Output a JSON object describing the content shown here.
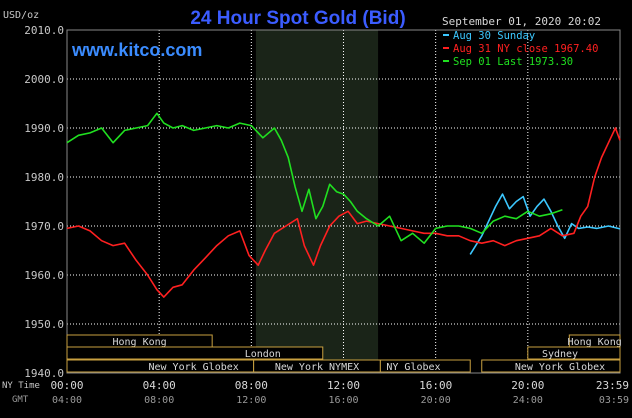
{
  "header": {
    "title": "24 Hour Spot Gold (Bid)",
    "unit": "USD/oz",
    "site": "www.kitco.com",
    "datetime": "September 01, 2020 20:02"
  },
  "colors": {
    "background": "#000000",
    "plot_bg": "#000000",
    "grid": "#ffffff",
    "title": "#3b5cff",
    "site": "#3b8cff",
    "text": "#c8c8c8",
    "session_shade": "#1a2418",
    "session_border": "#c8a040",
    "aug30": "#3cc8ff",
    "aug31": "#ff2020",
    "sep01": "#20e020"
  },
  "legend": [
    {
      "key": "aug30",
      "label": "Aug 30 Sunday"
    },
    {
      "key": "aug31",
      "label": "Aug 31 NY close 1967.40"
    },
    {
      "key": "sep01",
      "label": "Sep 01 Last 1973.30"
    }
  ],
  "sessions": [
    {
      "name": "Hong Kong",
      "row": 0
    },
    {
      "name": "Hong Kong",
      "row": 0
    },
    {
      "name": "London",
      "row": 1
    },
    {
      "name": "Sydney",
      "row": 1
    },
    {
      "name": "New York Globex",
      "row": 2
    },
    {
      "name": "New York NYMEX",
      "row": 2
    },
    {
      "name": "NY Globex",
      "row": 2
    },
    {
      "name": "New York Globex",
      "row": 2
    }
  ],
  "axis_labels": {
    "ny_time": "NY Time",
    "gmt": "GMT"
  },
  "chart_data": {
    "type": "line",
    "xlim": [
      0,
      24
    ],
    "ylim": [
      1940,
      2010
    ],
    "y_ticks": [
      "2010.0",
      "2000.0",
      "1990.0",
      "1980.0",
      "1970.0",
      "1960.0",
      "1950.0",
      "1940.0"
    ],
    "x_ticks_ny": [
      "00:00",
      "04:00",
      "08:00",
      "12:00",
      "16:00",
      "20:00",
      "23:59"
    ],
    "x_ticks_gmt": [
      "04:00",
      "08:00",
      "12:00",
      "16:00",
      "20:00",
      "24:00",
      "03:59"
    ],
    "grid": true,
    "series": [
      {
        "name": "Aug 30 Sunday",
        "color": "#3cc8ff",
        "x": [
          17.5,
          18.0,
          18.4,
          18.6,
          18.9,
          19.2,
          19.5,
          19.8,
          20.1,
          20.4,
          20.7,
          21.0,
          21.3,
          21.6,
          21.9,
          22.2,
          22.6,
          23.0,
          23.5,
          24.0
        ],
        "y": [
          1964.2,
          1968.0,
          1972.0,
          1974.0,
          1976.5,
          1973.5,
          1975.0,
          1976.0,
          1972.0,
          1974.0,
          1975.5,
          1973.0,
          1970.0,
          1967.5,
          1970.5,
          1969.5,
          1969.8,
          1969.5,
          1970.0,
          1969.4
        ]
      },
      {
        "name": "Aug 31 NY close 1967.40",
        "color": "#ff2020",
        "x": [
          0,
          0.5,
          1.0,
          1.5,
          2.0,
          2.5,
          3.0,
          3.5,
          3.9,
          4.2,
          4.6,
          5.0,
          5.5,
          6.0,
          6.5,
          7.0,
          7.5,
          7.9,
          8.3,
          8.6,
          9.0,
          9.5,
          10.0,
          10.3,
          10.7,
          11.0,
          11.4,
          11.8,
          12.2,
          12.6,
          13.0,
          13.5,
          14.0,
          14.5,
          15.0,
          15.5,
          16.0,
          16.5,
          17.0,
          17.5,
          18.0,
          18.5,
          19.0,
          19.5,
          20.0,
          20.5,
          21.0,
          21.5,
          22.0,
          22.3,
          22.6,
          22.9,
          23.2,
          23.5,
          23.8,
          24.0
        ],
        "y": [
          1969.5,
          1970.0,
          1969.0,
          1967.0,
          1966.0,
          1966.5,
          1963.0,
          1960.0,
          1957.0,
          1955.5,
          1957.5,
          1958.0,
          1961.0,
          1963.5,
          1966.0,
          1968.0,
          1969.0,
          1964.0,
          1962.0,
          1965.0,
          1968.5,
          1970.0,
          1971.5,
          1966.0,
          1962.0,
          1966.0,
          1970.0,
          1972.0,
          1973.0,
          1970.5,
          1971.0,
          1970.5,
          1970.0,
          1969.5,
          1969.0,
          1968.5,
          1968.5,
          1968.0,
          1968.0,
          1967.0,
          1966.5,
          1967.0,
          1966.0,
          1967.0,
          1967.5,
          1968.0,
          1969.5,
          1968.0,
          1968.5,
          1972.0,
          1974.0,
          1980.0,
          1984.0,
          1987.0,
          1990.0,
          1987.5
        ]
      },
      {
        "name": "Sep 01 Last 1973.30",
        "color": "#20e020",
        "x": [
          0,
          0.5,
          1.0,
          1.5,
          2.0,
          2.5,
          3.0,
          3.5,
          3.9,
          4.2,
          4.6,
          5.0,
          5.5,
          6.0,
          6.5,
          7.0,
          7.5,
          8.0,
          8.5,
          9.0,
          9.3,
          9.6,
          9.9,
          10.2,
          10.5,
          10.8,
          11.1,
          11.4,
          11.7,
          12.0,
          12.3,
          12.6,
          13.0,
          13.5,
          14.0,
          14.5,
          15.0,
          15.5,
          16.0,
          16.5,
          17.0,
          17.5,
          18.0,
          18.5,
          19.0,
          19.5,
          20.0,
          20.5,
          21.0,
          21.5
        ],
        "y": [
          1987.0,
          1988.5,
          1989.0,
          1990.0,
          1987.0,
          1989.5,
          1990.0,
          1990.5,
          1993.0,
          1991.0,
          1990.0,
          1990.5,
          1989.5,
          1990.0,
          1990.5,
          1990.0,
          1991.0,
          1990.5,
          1988.0,
          1990.0,
          1987.5,
          1984.0,
          1978.0,
          1973.0,
          1977.5,
          1971.5,
          1974.0,
          1978.5,
          1977.0,
          1976.5,
          1975.0,
          1973.0,
          1971.5,
          1970.0,
          1972.0,
          1967.0,
          1968.5,
          1966.5,
          1969.5,
          1970.0,
          1970.0,
          1969.5,
          1968.5,
          1971.0,
          1972.0,
          1971.5,
          1973.0,
          1972.0,
          1972.5,
          1973.3
        ]
      }
    ]
  }
}
